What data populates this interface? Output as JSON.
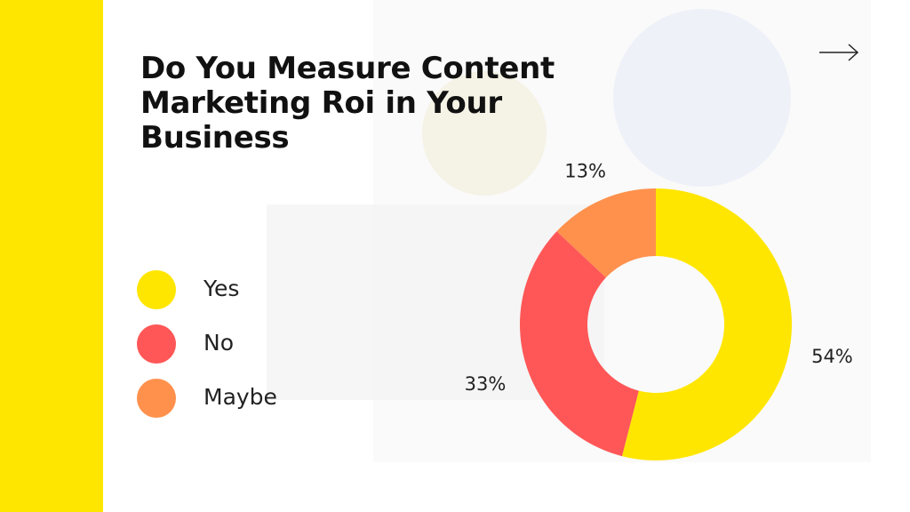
{
  "chart_data": {
    "type": "pie",
    "donut": true,
    "title": "Do You Measure Content Marketing Roi in Your Business",
    "categories": [
      "Yes",
      "No",
      "Maybe"
    ],
    "values": [
      54,
      33,
      13
    ],
    "value_labels": [
      "54%",
      "33%",
      "13%"
    ],
    "colors": [
      "#FFE600",
      "#FF5757",
      "#FF914D"
    ]
  }
}
